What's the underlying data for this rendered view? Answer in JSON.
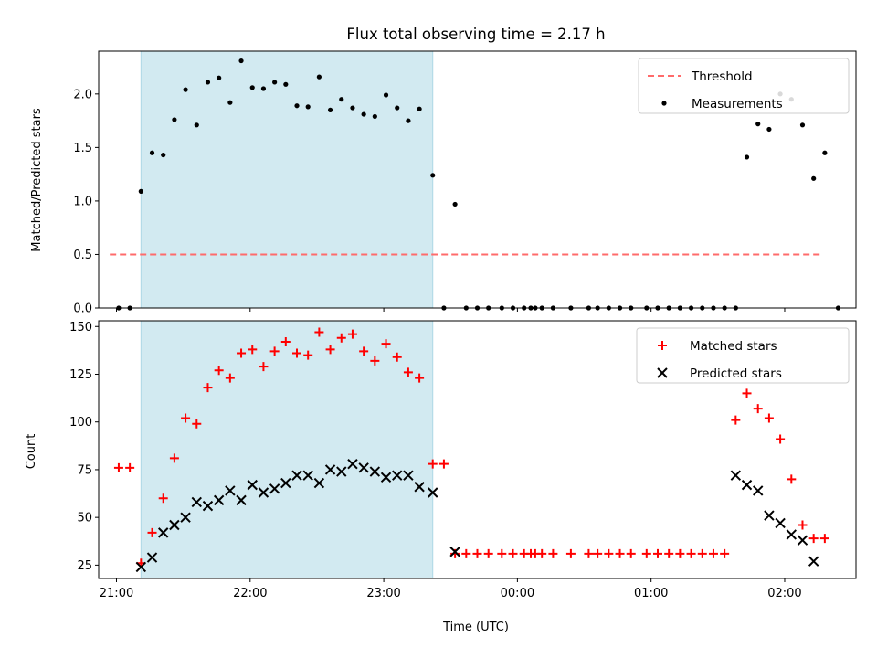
{
  "title": "Flux total observing time = 2.17 h",
  "colors": {
    "threshold": "#ff6b6b",
    "measurement": "#000000",
    "matched": "#ff0000",
    "predicted": "#000000",
    "shade": "#add8e6"
  },
  "chart_data": [
    {
      "type": "scatter",
      "panel": "top",
      "ylabel": "Matched/Predicted stars",
      "xlim": [
        "20:52",
        "02:32"
      ],
      "ylim": [
        0,
        2.4
      ],
      "yticks": [
        "0.0",
        "0.5",
        "1.0",
        "1.5",
        "2.0"
      ],
      "xticks": [
        "21:00",
        "22:00",
        "23:00",
        "00:00",
        "01:00",
        "02:00"
      ],
      "xtick_labels_shown": false,
      "shaded_span": [
        "21:11",
        "23:22"
      ],
      "legend": {
        "position": "top-right",
        "entries": [
          "Threshold",
          "Measurements"
        ]
      },
      "threshold": {
        "name": "Threshold",
        "style": "dashed",
        "y": 0.5,
        "x": [
          "20:57",
          "02:17"
        ]
      },
      "series": [
        {
          "name": "Measurements",
          "marker": "dot",
          "points": [
            [
              "21:01",
              0.0
            ],
            [
              "21:06",
              0.0
            ],
            [
              "21:11",
              1.09
            ],
            [
              "21:16",
              1.45
            ],
            [
              "21:21",
              1.43
            ],
            [
              "21:26",
              1.76
            ],
            [
              "21:31",
              2.04
            ],
            [
              "21:36",
              1.71
            ],
            [
              "21:41",
              2.11
            ],
            [
              "21:46",
              2.15
            ],
            [
              "21:51",
              1.92
            ],
            [
              "21:56",
              2.31
            ],
            [
              "22:01",
              2.06
            ],
            [
              "22:06",
              2.05
            ],
            [
              "22:11",
              2.11
            ],
            [
              "22:16",
              2.09
            ],
            [
              "22:21",
              1.89
            ],
            [
              "22:26",
              1.88
            ],
            [
              "22:31",
              2.16
            ],
            [
              "22:36",
              1.85
            ],
            [
              "22:41",
              1.95
            ],
            [
              "22:46",
              1.87
            ],
            [
              "22:51",
              1.81
            ],
            [
              "22:56",
              1.79
            ],
            [
              "23:01",
              1.99
            ],
            [
              "23:06",
              1.87
            ],
            [
              "23:11",
              1.75
            ],
            [
              "23:16",
              1.86
            ],
            [
              "23:22",
              1.24
            ],
            [
              "23:27",
              0.0
            ],
            [
              "23:32",
              0.97
            ],
            [
              "23:37",
              0.0
            ],
            [
              "23:42",
              0.0
            ],
            [
              "23:47",
              0.0
            ],
            [
              "23:53",
              0.0
            ],
            [
              "23:58",
              0.0
            ],
            [
              "00:03",
              0.0
            ],
            [
              "00:06",
              0.0
            ],
            [
              "00:08",
              0.0
            ],
            [
              "00:11",
              0.0
            ],
            [
              "00:16",
              0.0
            ],
            [
              "00:24",
              0.0
            ],
            [
              "00:32",
              0.0
            ],
            [
              "00:36",
              0.0
            ],
            [
              "00:41",
              0.0
            ],
            [
              "00:46",
              0.0
            ],
            [
              "00:51",
              0.0
            ],
            [
              "00:58",
              0.0
            ],
            [
              "01:03",
              0.0
            ],
            [
              "01:08",
              0.0
            ],
            [
              "01:13",
              0.0
            ],
            [
              "01:18",
              0.0
            ],
            [
              "01:23",
              0.0
            ],
            [
              "01:28",
              0.0
            ],
            [
              "01:33",
              0.0
            ],
            [
              "01:38",
              0.0
            ],
            [
              "01:43",
              1.41
            ],
            [
              "01:48",
              1.72
            ],
            [
              "01:53",
              1.67
            ],
            [
              "01:58",
              2.0
            ],
            [
              "02:03",
              1.95
            ],
            [
              "02:08",
              1.71
            ],
            [
              "02:13",
              1.21
            ],
            [
              "02:18",
              1.45
            ],
            [
              "02:24",
              0.0
            ]
          ]
        }
      ]
    },
    {
      "type": "scatter",
      "panel": "bottom",
      "xlabel": "Time (UTC)",
      "ylabel": "Count",
      "xlim": [
        "20:52",
        "02:32"
      ],
      "ylim": [
        18,
        153
      ],
      "yticks": [
        "25",
        "50",
        "75",
        "100",
        "125",
        "150"
      ],
      "xticks": [
        "21:00",
        "22:00",
        "23:00",
        "00:00",
        "01:00",
        "02:00"
      ],
      "shaded_span": [
        "21:11",
        "23:22"
      ],
      "legend": {
        "position": "top-right",
        "entries": [
          "Matched stars",
          "Predicted stars"
        ]
      },
      "series": [
        {
          "name": "Matched stars",
          "marker": "plus",
          "points": [
            [
              "21:01",
              76
            ],
            [
              "21:06",
              76
            ],
            [
              "21:11",
              26
            ],
            [
              "21:16",
              42
            ],
            [
              "21:21",
              60
            ],
            [
              "21:26",
              81
            ],
            [
              "21:31",
              102
            ],
            [
              "21:36",
              99
            ],
            [
              "21:41",
              118
            ],
            [
              "21:46",
              127
            ],
            [
              "21:51",
              123
            ],
            [
              "21:56",
              136
            ],
            [
              "22:01",
              138
            ],
            [
              "22:06",
              129
            ],
            [
              "22:11",
              137
            ],
            [
              "22:16",
              142
            ],
            [
              "22:21",
              136
            ],
            [
              "22:26",
              135
            ],
            [
              "22:31",
              147
            ],
            [
              "22:36",
              138
            ],
            [
              "22:41",
              144
            ],
            [
              "22:46",
              146
            ],
            [
              "22:51",
              137
            ],
            [
              "22:56",
              132
            ],
            [
              "23:01",
              141
            ],
            [
              "23:06",
              134
            ],
            [
              "23:11",
              126
            ],
            [
              "23:16",
              123
            ],
            [
              "23:22",
              78
            ],
            [
              "23:27",
              78
            ],
            [
              "23:32",
              31
            ],
            [
              "23:37",
              31
            ],
            [
              "23:42",
              31
            ],
            [
              "23:47",
              31
            ],
            [
              "23:53",
              31
            ],
            [
              "23:58",
              31
            ],
            [
              "00:03",
              31
            ],
            [
              "00:06",
              31
            ],
            [
              "00:08",
              31
            ],
            [
              "00:11",
              31
            ],
            [
              "00:16",
              31
            ],
            [
              "00:24",
              31
            ],
            [
              "00:32",
              31
            ],
            [
              "00:36",
              31
            ],
            [
              "00:41",
              31
            ],
            [
              "00:46",
              31
            ],
            [
              "00:51",
              31
            ],
            [
              "00:58",
              31
            ],
            [
              "01:03",
              31
            ],
            [
              "01:08",
              31
            ],
            [
              "01:13",
              31
            ],
            [
              "01:18",
              31
            ],
            [
              "01:23",
              31
            ],
            [
              "01:28",
              31
            ],
            [
              "01:33",
              31
            ],
            [
              "01:38",
              101
            ],
            [
              "01:43",
              115
            ],
            [
              "01:48",
              107
            ],
            [
              "01:53",
              102
            ],
            [
              "01:58",
              91
            ],
            [
              "02:03",
              70
            ],
            [
              "02:08",
              46
            ],
            [
              "02:13",
              39
            ],
            [
              "02:18",
              39
            ]
          ]
        },
        {
          "name": "Predicted stars",
          "marker": "x",
          "points": [
            [
              "21:11",
              24
            ],
            [
              "21:16",
              29
            ],
            [
              "21:21",
              42
            ],
            [
              "21:26",
              46
            ],
            [
              "21:31",
              50
            ],
            [
              "21:36",
              58
            ],
            [
              "21:41",
              56
            ],
            [
              "21:46",
              59
            ],
            [
              "21:51",
              64
            ],
            [
              "21:56",
              59
            ],
            [
              "22:01",
              67
            ],
            [
              "22:06",
              63
            ],
            [
              "22:11",
              65
            ],
            [
              "22:16",
              68
            ],
            [
              "22:21",
              72
            ],
            [
              "22:26",
              72
            ],
            [
              "22:31",
              68
            ],
            [
              "22:36",
              75
            ],
            [
              "22:41",
              74
            ],
            [
              "22:46",
              78
            ],
            [
              "22:51",
              76
            ],
            [
              "22:56",
              74
            ],
            [
              "23:01",
              71
            ],
            [
              "23:06",
              72
            ],
            [
              "23:11",
              72
            ],
            [
              "23:16",
              66
            ],
            [
              "23:22",
              63
            ],
            [
              "23:32",
              32
            ],
            [
              "01:38",
              72
            ],
            [
              "01:43",
              67
            ],
            [
              "01:48",
              64
            ],
            [
              "01:53",
              51
            ],
            [
              "01:58",
              47
            ],
            [
              "02:03",
              41
            ],
            [
              "02:08",
              38
            ],
            [
              "02:13",
              27
            ]
          ]
        }
      ]
    }
  ]
}
